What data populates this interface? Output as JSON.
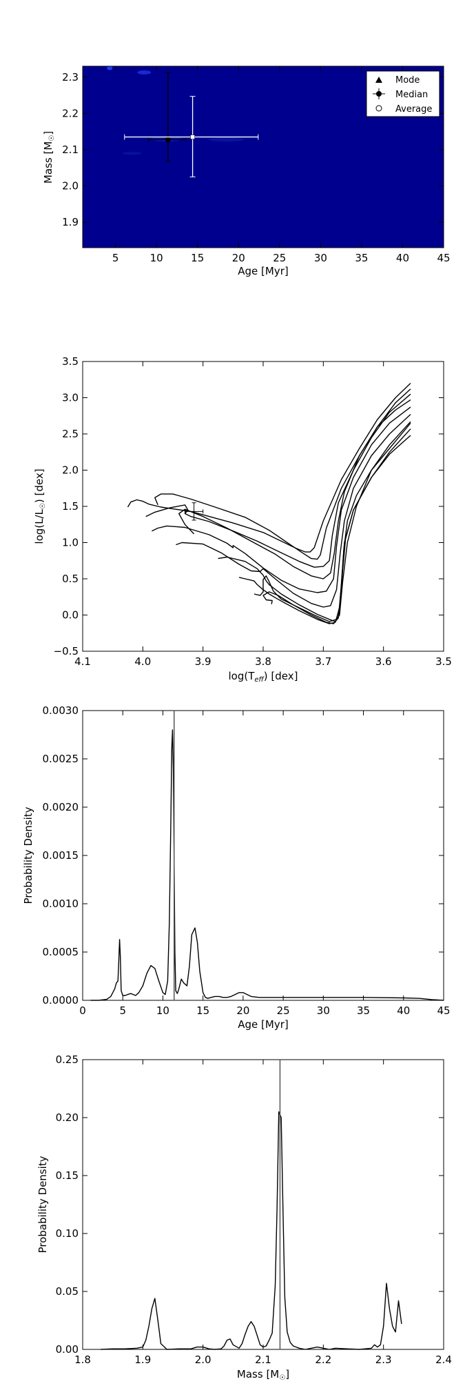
{
  "chart_data": [
    {
      "type": "scatter",
      "xlabel": "Age [Myr]",
      "ylabel": "Mass [M",
      "ylabel_sub": "☉",
      "ylabel_end": "]",
      "xlim": [
        1,
        45
      ],
      "ylim": [
        1.83,
        2.33
      ],
      "xticks": [
        5,
        10,
        15,
        20,
        25,
        30,
        35,
        40,
        45
      ],
      "yticks": [
        1.9,
        2.0,
        2.1,
        2.2,
        2.3
      ],
      "xtick_labels": [
        "5",
        "10",
        "15",
        "20",
        "25",
        "30",
        "35",
        "40",
        "45"
      ],
      "ytick_labels": [
        "1.9",
        "2.0",
        "2.1",
        "2.2",
        "2.3"
      ],
      "background_color": "#00008f",
      "legend": {
        "placement": "top-right",
        "entries": [
          {
            "label": "Mode",
            "marker": "triangle"
          },
          {
            "label": "Median",
            "marker": "errorbar-circle"
          },
          {
            "label": "Average",
            "marker": "open-circle"
          }
        ]
      },
      "points": [
        {
          "name": "Median",
          "x": 11.4,
          "y": 2.128,
          "xerr": [
            2.4,
            2.2
          ],
          "yerr": [
            0.06,
            0.185
          ],
          "color": "#000000"
        },
        {
          "name": "Average",
          "x": 14.4,
          "y": 2.135,
          "xerr": [
            8.3,
            8.0
          ],
          "yerr": [
            0.11,
            0.112
          ],
          "color": "#ffffff"
        }
      ]
    },
    {
      "type": "line",
      "xlabel": "log(T",
      "xlabel_sub": "eff",
      "xlabel_end": ") [dex]",
      "ylabel": "log(L/L",
      "ylabel_sub": "☉",
      "ylabel_end": ") [dex]",
      "xlim": [
        4.1,
        3.5
      ],
      "ylim": [
        -0.5,
        3.5
      ],
      "xticks": [
        4.1,
        4.0,
        3.9,
        3.8,
        3.7,
        3.6,
        3.5
      ],
      "yticks": [
        -0.5,
        0.0,
        0.5,
        1.0,
        1.5,
        2.0,
        2.5,
        3.0,
        3.5
      ],
      "xtick_labels": [
        "4.1",
        "4.0",
        "3.9",
        "3.8",
        "3.7",
        "3.6",
        "3.5"
      ],
      "ytick_labels": [
        "−0.5",
        "0.0",
        "0.5",
        "1.0",
        "1.5",
        "2.0",
        "2.5",
        "3.0",
        "3.5"
      ],
      "star": {
        "x": 3.915,
        "y": 1.43,
        "xerr": 0.015,
        "yerr": 0.12
      },
      "series": [
        {
          "x": [
            4.025,
            4.02,
            4.01,
            4.0,
            3.99,
            3.97,
            3.92,
            3.85,
            3.8,
            3.77,
            3.745,
            3.73,
            3.722,
            3.715,
            3.7,
            3.67,
            3.64,
            3.61,
            3.58,
            3.555
          ],
          "y": [
            1.49,
            1.56,
            1.59,
            1.57,
            1.53,
            1.49,
            1.43,
            1.27,
            1.14,
            1.02,
            0.92,
            0.87,
            0.87,
            0.93,
            1.3,
            1.87,
            2.3,
            2.7,
            3.0,
            3.2
          ]
        },
        {
          "x": [
            3.975,
            3.98,
            3.97,
            3.95,
            3.92,
            3.88,
            3.83,
            3.79,
            3.76,
            3.735,
            3.72,
            3.71,
            3.705,
            3.695,
            3.67,
            3.64,
            3.61,
            3.58,
            3.555
          ],
          "y": [
            1.52,
            1.62,
            1.67,
            1.67,
            1.6,
            1.49,
            1.35,
            1.17,
            1.0,
            0.86,
            0.78,
            0.77,
            0.83,
            1.2,
            1.75,
            2.2,
            2.6,
            2.93,
            3.12
          ]
        },
        {
          "x": [
            3.995,
            3.98,
            3.955,
            3.93,
            3.925,
            3.93,
            3.92,
            3.89,
            3.85,
            3.81,
            3.77,
            3.74,
            3.715,
            3.7,
            3.69,
            3.685,
            3.675,
            3.65,
            3.62,
            3.59,
            3.555
          ],
          "y": [
            1.36,
            1.42,
            1.48,
            1.52,
            1.45,
            1.4,
            1.36,
            1.29,
            1.16,
            1.02,
            0.86,
            0.74,
            0.66,
            0.67,
            0.75,
            1.1,
            1.55,
            2.0,
            2.45,
            2.8,
            3.05
          ]
        },
        {
          "x": [
            3.915,
            3.93,
            3.94,
            3.93,
            3.9,
            3.86,
            3.82,
            3.78,
            3.75,
            3.72,
            3.7,
            3.688,
            3.682,
            3.675,
            3.665,
            3.64,
            3.61,
            3.58,
            3.555
          ],
          "y": [
            1.12,
            1.25,
            1.4,
            1.46,
            1.36,
            1.2,
            1.02,
            0.84,
            0.67,
            0.54,
            0.5,
            0.58,
            0.85,
            1.3,
            1.7,
            2.2,
            2.6,
            2.83,
            2.97
          ]
        },
        {
          "x": [
            3.985,
            3.975,
            3.96,
            3.93,
            3.89,
            3.86,
            3.85,
            3.85,
            3.83,
            3.8,
            3.77,
            3.74,
            3.71,
            3.695,
            3.683,
            3.678,
            3.67,
            3.65,
            3.62,
            3.59,
            3.555
          ],
          "y": [
            1.16,
            1.2,
            1.23,
            1.21,
            1.11,
            0.99,
            0.93,
            0.96,
            0.85,
            0.65,
            0.48,
            0.36,
            0.31,
            0.33,
            0.5,
            0.95,
            1.45,
            1.9,
            2.35,
            2.65,
            2.87
          ]
        },
        {
          "x": [
            3.945,
            3.935,
            3.9,
            3.87,
            3.84,
            3.82,
            3.805,
            3.8,
            3.78,
            3.75,
            3.72,
            3.7,
            3.688,
            3.678,
            3.672,
            3.665,
            3.65,
            3.62,
            3.59,
            3.555
          ],
          "y": [
            0.97,
            1.0,
            0.98,
            0.86,
            0.7,
            0.61,
            0.6,
            0.64,
            0.5,
            0.3,
            0.16,
            0.11,
            0.13,
            0.35,
            0.85,
            1.3,
            1.75,
            2.2,
            2.5,
            2.77
          ]
        },
        {
          "x": [
            3.875,
            3.86,
            3.83,
            3.81,
            3.8,
            3.795,
            3.79,
            3.77,
            3.74,
            3.71,
            3.69,
            3.68,
            3.673,
            3.668,
            3.66,
            3.645,
            3.62,
            3.59,
            3.555
          ],
          "y": [
            0.78,
            0.8,
            0.74,
            0.64,
            0.55,
            0.47,
            0.42,
            0.29,
            0.14,
            0.01,
            -0.06,
            -0.09,
            0.0,
            0.45,
            1.0,
            1.5,
            2.0,
            2.35,
            2.67
          ]
        },
        {
          "x": [
            3.84,
            3.83,
            3.815,
            3.81,
            3.8,
            3.79,
            3.78,
            3.765,
            3.74,
            3.71,
            3.69,
            3.68,
            3.673,
            3.669,
            3.665,
            3.65,
            3.62,
            3.59,
            3.555
          ],
          "y": [
            0.52,
            0.5,
            0.47,
            0.42,
            0.35,
            0.29,
            0.24,
            0.17,
            0.06,
            -0.06,
            -0.12,
            -0.1,
            0.1,
            0.55,
            1.0,
            1.45,
            1.9,
            2.25,
            2.57
          ]
        },
        {
          "x": [
            3.815,
            3.805,
            3.8,
            3.8,
            3.795,
            3.79,
            3.783,
            3.77,
            3.745,
            3.715,
            3.69,
            3.678,
            3.672,
            3.668,
            3.663,
            3.65,
            3.62,
            3.59,
            3.555
          ],
          "y": [
            0.29,
            0.27,
            0.32,
            0.49,
            0.54,
            0.46,
            0.33,
            0.22,
            0.12,
            0.0,
            -0.09,
            -0.06,
            0.15,
            0.6,
            1.05,
            1.45,
            1.9,
            2.22,
            2.48
          ]
        },
        {
          "x": [
            3.786,
            3.785,
            3.795,
            3.8,
            3.79,
            3.775,
            3.75,
            3.72,
            3.695,
            3.683,
            3.675,
            3.67,
            3.666,
            3.66,
            3.645,
            3.62,
            3.59,
            3.555
          ],
          "y": [
            0.15,
            0.2,
            0.21,
            0.27,
            0.32,
            0.27,
            0.14,
            0.0,
            -0.1,
            -0.12,
            -0.04,
            0.4,
            0.9,
            1.3,
            1.65,
            2.0,
            2.3,
            2.65
          ]
        }
      ]
    },
    {
      "type": "line",
      "xlabel": "Age [Myr]",
      "ylabel": "Probability Density",
      "xlim": [
        0,
        45
      ],
      "ylim": [
        0,
        0.003
      ],
      "xticks": [
        0,
        5,
        10,
        15,
        20,
        25,
        30,
        35,
        40,
        45
      ],
      "yticks": [
        0,
        0.0005,
        0.001,
        0.0015,
        0.002,
        0.0025,
        0.003
      ],
      "xtick_labels": [
        "0",
        "5",
        "10",
        "15",
        "20",
        "25",
        "30",
        "35",
        "40",
        "45"
      ],
      "ytick_labels": [
        "0.0000",
        "0.0005",
        "0.0010",
        "0.0015",
        "0.0020",
        "0.0025",
        "0.0030"
      ],
      "vline": 11.4,
      "x": [
        1.0,
        2.0,
        3.0,
        3.5,
        4.0,
        4.2,
        4.4,
        4.5,
        4.6,
        4.7,
        4.8,
        5.0,
        5.3,
        5.6,
        6.0,
        6.3,
        6.6,
        7.0,
        7.5,
        8.0,
        8.5,
        9.0,
        9.5,
        10.0,
        10.3,
        10.6,
        10.8,
        11.0,
        11.1,
        11.2,
        11.3,
        11.4,
        11.5,
        11.6,
        11.8,
        12.0,
        12.3,
        12.6,
        13.0,
        13.3,
        13.6,
        14.0,
        14.3,
        14.6,
        15.0,
        15.3,
        15.6,
        16.0,
        16.5,
        17.0,
        17.5,
        18.0,
        18.5,
        19.0,
        19.5,
        20.0,
        20.5,
        21.0,
        22.0,
        25.0,
        30.0,
        35.0,
        40.0,
        42.0,
        43.5,
        45.0
      ],
      "y": [
        0.0,
        0.0,
        1e-05,
        4e-05,
        0.00012,
        0.00018,
        0.0002,
        0.0004,
        0.00063,
        0.00045,
        0.0001,
        5e-05,
        5e-05,
        6e-05,
        7e-05,
        6e-05,
        5e-05,
        8e-05,
        0.00015,
        0.00028,
        0.00036,
        0.00033,
        0.0002,
        8e-05,
        6e-05,
        0.0002,
        0.0008,
        0.0019,
        0.0026,
        0.0028,
        0.0024,
        0.0015,
        0.0005,
        0.0001,
        7e-05,
        0.00012,
        0.00022,
        0.00018,
        0.00015,
        0.00035,
        0.00068,
        0.00075,
        0.0006,
        0.0003,
        8e-05,
        3e-05,
        2e-05,
        3e-05,
        4e-05,
        4e-05,
        3e-05,
        3e-05,
        4e-05,
        6e-05,
        8e-05,
        8e-05,
        6e-05,
        4e-05,
        3e-05,
        3e-05,
        3e-05,
        3e-05,
        2.5e-05,
        2e-05,
        8e-06,
        0.0
      ]
    },
    {
      "type": "line",
      "xlabel": "Mass [M",
      "xlabel_sub": "☉",
      "xlabel_end": "]",
      "ylabel": "Probability Density",
      "xlim": [
        1.8,
        2.4
      ],
      "ylim": [
        0,
        0.25
      ],
      "xticks": [
        1.8,
        1.9,
        2.0,
        2.1,
        2.2,
        2.3,
        2.4
      ],
      "yticks": [
        0,
        0.05,
        0.1,
        0.15,
        0.2,
        0.25
      ],
      "xtick_labels": [
        "1.8",
        "1.9",
        "2.0",
        "2.1",
        "2.2",
        "2.3",
        "2.4"
      ],
      "ytick_labels": [
        "0.00",
        "0.05",
        "0.10",
        "0.15",
        "0.20",
        "0.25"
      ],
      "vline": 2.128,
      "x": [
        1.83,
        1.85,
        1.87,
        1.89,
        1.9,
        1.905,
        1.91,
        1.915,
        1.92,
        1.925,
        1.93,
        1.94,
        1.96,
        1.98,
        1.99,
        2.0,
        2.01,
        2.02,
        2.03,
        2.035,
        2.04,
        2.045,
        2.05,
        2.06,
        2.065,
        2.07,
        2.075,
        2.08,
        2.085,
        2.09,
        2.095,
        2.1,
        2.105,
        2.11,
        2.115,
        2.12,
        2.123,
        2.126,
        2.13,
        2.133,
        2.136,
        2.14,
        2.145,
        2.15,
        2.16,
        2.17,
        2.18,
        2.19,
        2.2,
        2.21,
        2.22,
        2.24,
        2.26,
        2.28,
        2.285,
        2.29,
        2.295,
        2.3,
        2.305,
        2.31,
        2.315,
        2.32,
        2.325,
        2.33
      ],
      "y": [
        0.0,
        0.0005,
        0.0005,
        0.001,
        0.002,
        0.008,
        0.02,
        0.035,
        0.044,
        0.025,
        0.005,
        0.0,
        0.0005,
        0.0005,
        0.002,
        0.002,
        0.0005,
        0.0,
        0.0005,
        0.003,
        0.008,
        0.009,
        0.004,
        0.001,
        0.005,
        0.013,
        0.02,
        0.024,
        0.02,
        0.012,
        0.004,
        0.002,
        0.003,
        0.008,
        0.014,
        0.055,
        0.12,
        0.205,
        0.2,
        0.12,
        0.045,
        0.015,
        0.006,
        0.003,
        0.001,
        0.0,
        0.001,
        0.002,
        0.001,
        0.0,
        0.001,
        0.0005,
        0.0,
        0.001,
        0.004,
        0.002,
        0.004,
        0.02,
        0.057,
        0.035,
        0.02,
        0.015,
        0.042,
        0.022
      ]
    }
  ]
}
